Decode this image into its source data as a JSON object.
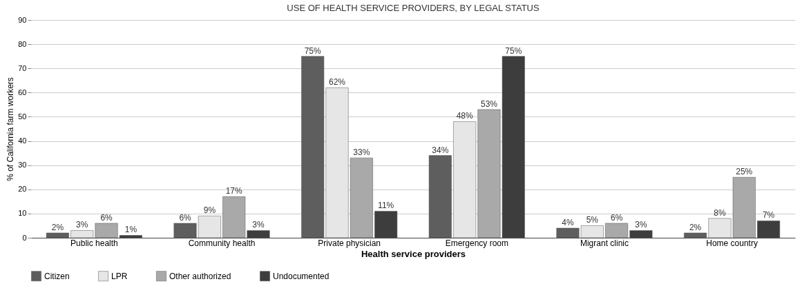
{
  "chart_data": {
    "type": "bar",
    "title": "USE OF HEALTH SERVICE PROVIDERS, BY LEGAL STATUS",
    "xlabel": "Health service providers",
    "ylabel": "% of California farm workers",
    "categories": [
      "Public health",
      "Community health",
      "Private physician",
      "Emergency room",
      "Migrant clinic",
      "Home country"
    ],
    "series": [
      {
        "name": "Citizen",
        "color": "#5e5e5e",
        "values": [
          2,
          6,
          75,
          34,
          4,
          2
        ],
        "value_labels": [
          "2%",
          "6%",
          "75%",
          "34%",
          "4%",
          "2%"
        ]
      },
      {
        "name": "LPR",
        "color": "#e6e6e6",
        "values": [
          3,
          9,
          62,
          48,
          5,
          8
        ],
        "value_labels": [
          "3%",
          "9%",
          "62%",
          "48%",
          "5%",
          "8%"
        ]
      },
      {
        "name": "Other authorized",
        "color": "#a9a9a9",
        "values": [
          6,
          17,
          33,
          53,
          6,
          25
        ],
        "value_labels": [
          "6%",
          "17%",
          "33%",
          "53%",
          "6%",
          "25%"
        ]
      },
      {
        "name": "Undocumented",
        "color": "#3d3d3d",
        "values": [
          1,
          3,
          11,
          75,
          3,
          7
        ],
        "value_labels": [
          "1%",
          "3%",
          "11%",
          "75%",
          "3%",
          "7%"
        ]
      }
    ],
    "ylim": [
      0,
      90
    ],
    "yticks": [
      0,
      10,
      20,
      30,
      40,
      50,
      60,
      70,
      80,
      90
    ],
    "grid": "y",
    "legend": "bottom"
  }
}
